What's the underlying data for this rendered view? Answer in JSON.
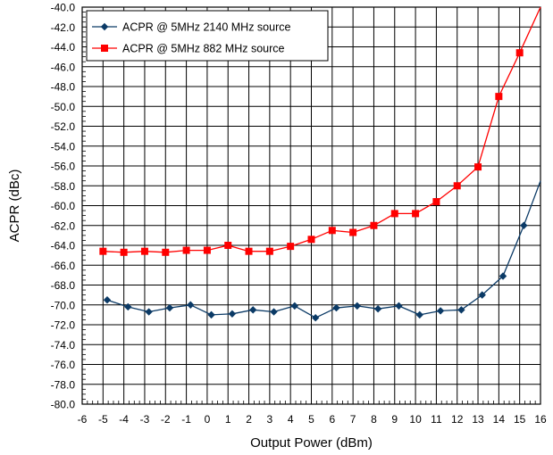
{
  "chart_data": {
    "type": "line",
    "title": "",
    "xlabel": "Output Power (dBm)",
    "ylabel": "ACPR (dBc)",
    "xlim": [
      -6,
      16
    ],
    "ylim": [
      -80,
      -40
    ],
    "x_ticks": [
      -6,
      -5,
      -4,
      -3,
      -2,
      -1,
      0,
      1,
      2,
      3,
      4,
      5,
      6,
      7,
      8,
      9,
      10,
      11,
      12,
      13,
      14,
      15,
      16
    ],
    "y_ticks": [
      -80,
      -78,
      -76,
      -74,
      -72,
      -70,
      -68,
      -66,
      -64,
      -62,
      -60,
      -58,
      -56,
      -54,
      -52,
      -50,
      -48,
      -46,
      -44,
      -42,
      -40
    ],
    "y_tick_labels": [
      "-80.0",
      "-78.0",
      "-76.0",
      "-74.0",
      "-72.0",
      "-70.0",
      "-68.0",
      "-66.0",
      "-64.0",
      "-62.0",
      "-60.0",
      "-58.0",
      "-56.0",
      "-54.0",
      "-52.0",
      "-50.0",
      "-48.0",
      "-46.0",
      "-44.0",
      "-42.0",
      "-40.0"
    ],
    "grid": true,
    "legend_position": "top-left",
    "series": [
      {
        "name": "ACPR @ 5MHz 2140 MHz source",
        "color": "#0b3a66",
        "marker": "diamond",
        "x": [
          -4.8,
          -3.8,
          -2.8,
          -1.8,
          -0.8,
          0.2,
          1.2,
          2.2,
          3.2,
          4.2,
          5.2,
          6.2,
          7.2,
          8.2,
          9.2,
          10.2,
          11.2,
          12.2,
          13.2,
          14.2,
          15.2
        ],
        "y": [
          -69.5,
          -70.2,
          -70.7,
          -70.3,
          -70.0,
          -71.0,
          -70.9,
          -70.5,
          -70.7,
          -70.1,
          -71.3,
          -70.3,
          -70.1,
          -70.4,
          -70.1,
          -71.0,
          -70.6,
          -70.5,
          -69.0,
          -67.1,
          -62.0
        ],
        "line_x": [
          -4.8,
          -3.8,
          -2.8,
          -1.8,
          -0.8,
          0.2,
          1.2,
          2.2,
          3.2,
          4.2,
          5.2,
          6.2,
          7.2,
          8.2,
          9.2,
          10.2,
          11.2,
          12.2,
          13.2,
          14.2,
          15.2,
          16.0
        ],
        "line_y": [
          -69.5,
          -70.2,
          -70.7,
          -70.3,
          -70.0,
          -71.0,
          -70.9,
          -70.5,
          -70.7,
          -70.1,
          -71.3,
          -70.3,
          -70.1,
          -70.4,
          -70.1,
          -71.0,
          -70.6,
          -70.5,
          -69.0,
          -67.1,
          -62.0,
          -57.5
        ]
      },
      {
        "name": "ACPR @ 5MHz 882 MHz source",
        "color": "#ff0000",
        "marker": "square",
        "x": [
          -5.0,
          -4.0,
          -3.0,
          -2.0,
          -1.0,
          0.0,
          1.0,
          2.0,
          3.0,
          4.0,
          5.0,
          6.0,
          7.0,
          8.0,
          9.0,
          10.0,
          11.0,
          12.0,
          13.0,
          14.0,
          15.0
        ],
        "y": [
          -64.6,
          -64.7,
          -64.6,
          -64.7,
          -64.5,
          -64.5,
          -64.0,
          -64.6,
          -64.6,
          -64.1,
          -63.4,
          -62.5,
          -62.7,
          -62.0,
          -60.8,
          -60.8,
          -59.6,
          -58.0,
          -56.1,
          -49.0,
          -44.6
        ],
        "line_x": [
          -5.0,
          -4.0,
          -3.0,
          -2.0,
          -1.0,
          0.0,
          1.0,
          2.0,
          3.0,
          4.0,
          5.0,
          6.0,
          7.0,
          8.0,
          9.0,
          10.0,
          11.0,
          12.0,
          13.0,
          14.0,
          15.0,
          16.0
        ],
        "line_y": [
          -64.6,
          -64.7,
          -64.6,
          -64.7,
          -64.5,
          -64.5,
          -64.0,
          -64.6,
          -64.6,
          -64.1,
          -63.4,
          -62.5,
          -62.7,
          -62.0,
          -60.8,
          -60.8,
          -59.6,
          -58.0,
          -56.1,
          -49.0,
          -44.6,
          -40.0
        ]
      }
    ]
  }
}
